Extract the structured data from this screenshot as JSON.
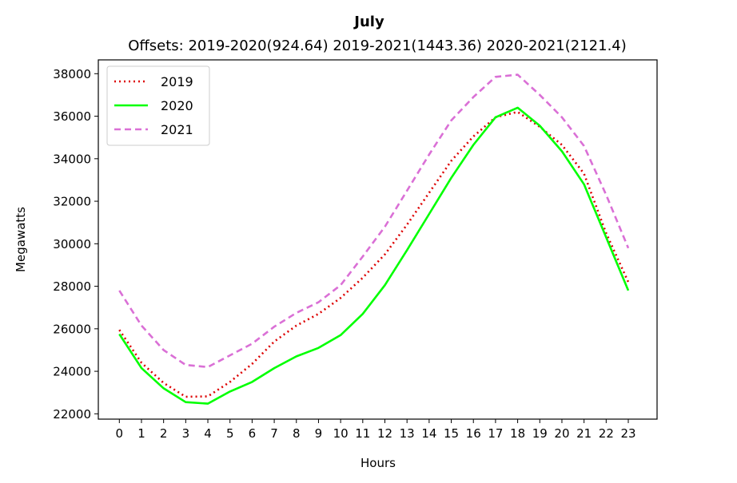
{
  "chart_data": {
    "type": "line",
    "title": "July",
    "subtitle": "Offsets: 2019-2020(924.64) 2019-2021(1443.36) 2020-2021(2121.4)",
    "xlabel": "Hours",
    "ylabel": "Megawatts",
    "x": [
      0,
      1,
      2,
      3,
      4,
      5,
      6,
      7,
      8,
      9,
      10,
      11,
      12,
      13,
      14,
      15,
      16,
      17,
      18,
      19,
      20,
      21,
      22,
      23
    ],
    "xlim": [
      -0.95,
      24.3
    ],
    "ylim": [
      21750,
      38650
    ],
    "yticks": [
      22000,
      24000,
      26000,
      28000,
      30000,
      32000,
      34000,
      36000,
      38000
    ],
    "grid": false,
    "legend_position": "top-left",
    "series": [
      {
        "name": "2019",
        "color": "#dd0000",
        "style": "dotted",
        "values": [
          25950,
          24400,
          23450,
          22800,
          22820,
          23500,
          24350,
          25400,
          26150,
          26700,
          27450,
          28400,
          29500,
          30900,
          32400,
          33900,
          35050,
          35950,
          36200,
          35500,
          34650,
          33300,
          30500,
          28200
        ]
      },
      {
        "name": "2020",
        "color": "#00ff00",
        "style": "solid",
        "values": [
          25750,
          24150,
          23200,
          22550,
          22480,
          23050,
          23500,
          24150,
          24700,
          25100,
          25700,
          26700,
          28050,
          29700,
          31400,
          33100,
          34650,
          35950,
          36400,
          35550,
          34350,
          32800,
          30300,
          27800
        ]
      },
      {
        "name": "2021",
        "color": "#da70d6",
        "style": "dashed",
        "values": [
          27800,
          26150,
          25000,
          24300,
          24200,
          24750,
          25300,
          26100,
          26750,
          27250,
          28050,
          29400,
          30800,
          32500,
          34200,
          35800,
          36900,
          37850,
          37950,
          37000,
          35950,
          34600,
          32300,
          29800
        ]
      }
    ]
  }
}
